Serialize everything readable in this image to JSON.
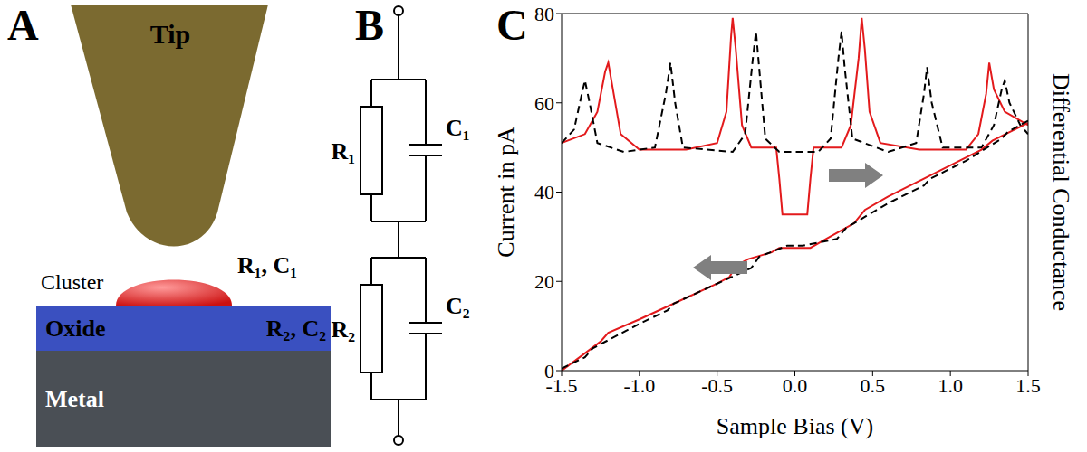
{
  "panels": {
    "A": {
      "letter": "A",
      "labels": {
        "tip": "Tip",
        "cluster": "Cluster",
        "cluster_rc": "R₁, C₁",
        "oxide": "Oxide",
        "oxide_rc": "R₂, C₂",
        "metal": "Metal"
      }
    },
    "B": {
      "letter": "B",
      "components": {
        "R1": "R₁",
        "C1": "C₁",
        "R2": "R₂",
        "C2": "C₂"
      }
    },
    "C": {
      "letter": "C"
    }
  },
  "chart_data": {
    "type": "line",
    "x_label": "Sample Bias (V)",
    "y_label": "Current in pA",
    "y2_label": "Differential Conductance",
    "xlim": [
      -1.5,
      1.5
    ],
    "xticks": [
      -1.5,
      {
        "value": -1.0,
        "label": "-1.0"
      },
      -0.5,
      {
        "value": 0,
        "label": "0.0"
      },
      0.5,
      {
        "value": 1.0,
        "label": "1.0"
      },
      1.5
    ],
    "ylim": [
      0,
      80
    ],
    "yticks": [
      0,
      20,
      40,
      60,
      80
    ],
    "y2lim": [
      0,
      80
    ],
    "series": [
      {
        "color": "#e31a1c",
        "line_style": "solid",
        "axis": "y2",
        "x": [
          -1.5,
          -1.35,
          -1.27,
          -1.22,
          -1.2,
          -1.17,
          -1.12,
          -1.0,
          -0.7,
          -0.5,
          -0.44,
          -0.41,
          -0.4,
          -0.38,
          -0.34,
          -0.28,
          -0.12,
          -0.1,
          -0.08,
          0.08,
          0.1,
          0.12,
          0.3,
          0.36,
          0.41,
          0.43,
          0.45,
          0.48,
          0.55,
          0.8,
          1.1,
          1.18,
          1.23,
          1.25,
          1.28,
          1.35,
          1.5
        ],
        "values": [
          51,
          53,
          58,
          67,
          69,
          63,
          53,
          49.5,
          49.5,
          51,
          58,
          75,
          79,
          72,
          55,
          50,
          50,
          43,
          35,
          35,
          43,
          50,
          50,
          55,
          70,
          79,
          72,
          58,
          51,
          49.5,
          49.5,
          53,
          62,
          69,
          63,
          58,
          55
        ]
      },
      {
        "color": "#000000",
        "line_style": "dashed",
        "axis": "y2",
        "x": [
          -1.5,
          -1.42,
          -1.37,
          -1.35,
          -1.32,
          -1.27,
          -1.1,
          -0.9,
          -0.83,
          -0.8,
          -0.77,
          -0.72,
          -0.4,
          -0.32,
          -0.27,
          -0.25,
          -0.23,
          -0.19,
          -0.1,
          0.15,
          0.23,
          0.28,
          0.3,
          0.32,
          0.37,
          0.6,
          0.78,
          0.83,
          0.85,
          0.88,
          0.95,
          1.2,
          1.28,
          1.33,
          1.35,
          1.38,
          1.45,
          1.5
        ],
        "values": [
          51,
          54,
          62,
          65,
          60,
          51,
          49,
          50,
          62,
          69,
          60,
          50,
          49,
          53,
          70,
          76,
          68,
          52,
          49,
          49,
          52,
          70,
          76,
          68,
          52,
          49,
          51,
          62,
          68,
          60,
          50,
          50,
          55,
          63,
          65,
          60,
          55,
          53
        ]
      },
      {
        "color": "#e31a1c",
        "line_style": "solid",
        "axis": "y",
        "x": [
          -1.5,
          -1.25,
          -1.2,
          -1.0,
          -0.75,
          -0.5,
          -0.42,
          -0.38,
          -0.3,
          -0.15,
          -0.1,
          0.1,
          0.2,
          0.38,
          0.45,
          0.6,
          0.8,
          1.0,
          1.2,
          1.27,
          1.5
        ],
        "values": [
          0,
          6.5,
          8.5,
          11.5,
          15.5,
          19.5,
          21,
          23.5,
          25,
          26.5,
          27.5,
          27.5,
          29.5,
          33,
          36,
          39,
          42.5,
          46,
          49.5,
          51.5,
          55.5
        ]
      },
      {
        "color": "#000000",
        "line_style": "dashed",
        "axis": "y",
        "x": [
          -1.5,
          -1.35,
          -1.3,
          -1.0,
          -0.82,
          -0.78,
          -0.5,
          -0.28,
          -0.23,
          -0.05,
          0.05,
          0.27,
          0.33,
          0.6,
          0.83,
          0.87,
          1.1,
          1.33,
          1.37,
          1.5
        ],
        "values": [
          0.5,
          3,
          5,
          10.5,
          13.5,
          15,
          19.5,
          23,
          25.5,
          28,
          28,
          29.5,
          32,
          37.5,
          41.5,
          43,
          47,
          52,
          53.5,
          56
        ]
      }
    ]
  }
}
